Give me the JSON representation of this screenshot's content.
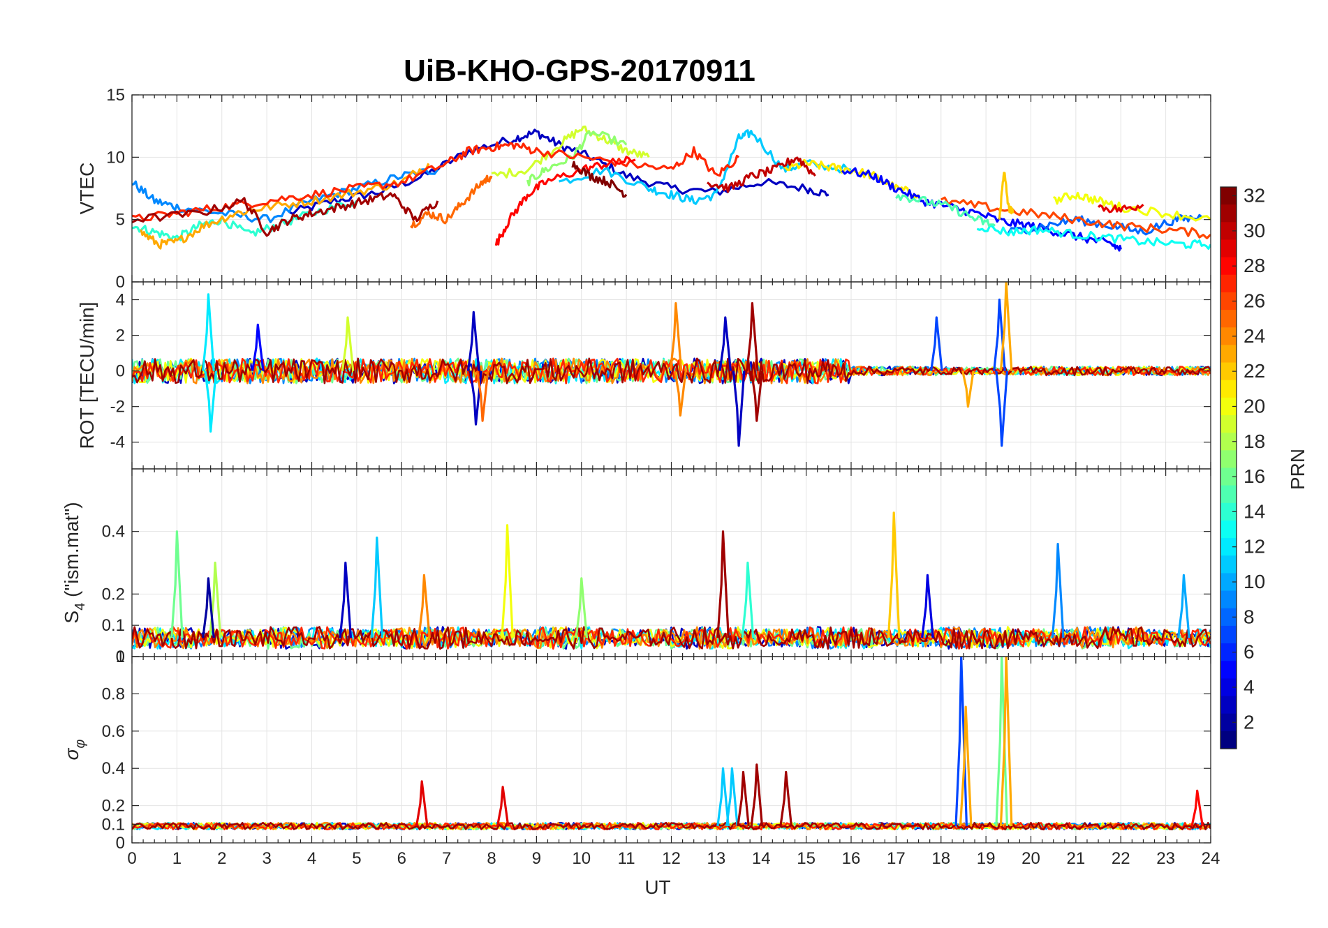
{
  "title": "UiB-KHO-GPS-20170911",
  "xlabel": "UT",
  "colorbar": {
    "label": "PRN",
    "min": 1,
    "max": 32,
    "ticks": [
      "2",
      "4",
      "6",
      "8",
      "10",
      "12",
      "14",
      "16",
      "18",
      "20",
      "22",
      "24",
      "26",
      "28",
      "30",
      "32"
    ],
    "colormap": "jet"
  },
  "chart_data": [
    {
      "type": "line",
      "panel": "vtec",
      "ylabel": "VTEC",
      "xlim": [
        0,
        24
      ],
      "ylim": [
        0,
        15
      ],
      "x_ticks": [
        "0",
        "1",
        "2",
        "3",
        "4",
        "5",
        "6",
        "7",
        "8",
        "9",
        "10",
        "11",
        "12",
        "13",
        "14",
        "15",
        "16",
        "17",
        "18",
        "19",
        "20",
        "21",
        "22",
        "23",
        "24"
      ],
      "y_ticks": [
        {
          "value": 0,
          "label": "0"
        },
        {
          "value": 5,
          "label": "5"
        },
        {
          "value": 10,
          "label": "10"
        },
        {
          "value": 15,
          "label": "15"
        }
      ],
      "grid": true,
      "series_note": "VTEC per satellite, colored by PRN",
      "series": [
        {
          "prn": 3,
          "x": [
            3.5,
            4.5,
            5.5,
            6.5,
            7.5,
            8.5,
            9.0,
            9.5,
            10.2,
            11.0,
            12.0,
            13.0,
            14.0,
            15.0,
            15.5
          ],
          "y": [
            5.5,
            6.5,
            7.2,
            8.5,
            10.5,
            11.5,
            12.0,
            11.0,
            10.0,
            8.5,
            7.5,
            7.2,
            8.0,
            7.5,
            7.0
          ]
        },
        {
          "prn": 9,
          "x": [
            0.0,
            0.5,
            1.0,
            2.0,
            3.0,
            4.0,
            5.0,
            6.0,
            6.8
          ],
          "y": [
            8.0,
            6.5,
            6.0,
            5.5,
            5.0,
            6.5,
            7.5,
            8.5,
            9.0
          ]
        },
        {
          "prn": 14,
          "x": [
            0.0,
            0.5,
            1.0,
            1.5,
            2.0,
            2.6,
            3.2,
            4.0,
            5.0
          ],
          "y": [
            4.5,
            4.0,
            3.5,
            4.5,
            5.0,
            3.8,
            4.5,
            5.5,
            6.5
          ]
        },
        {
          "prn": 11,
          "x": [
            9.5,
            10.5,
            11.5,
            12.0,
            12.5,
            13.0,
            13.5,
            13.8,
            14.5,
            15.0,
            16.0
          ],
          "y": [
            8.0,
            9.0,
            7.5,
            7.0,
            6.5,
            7.0,
            11.5,
            12.0,
            9.0,
            9.5,
            9.0
          ]
        },
        {
          "prn": 19,
          "x": [
            8.0,
            8.8,
            9.5,
            10.0,
            10.5,
            11.0,
            11.5
          ],
          "y": [
            8.5,
            9.0,
            11.0,
            12.3,
            11.5,
            10.5,
            10.0
          ]
        },
        {
          "prn": 17,
          "x": [
            8.8,
            9.2,
            9.8,
            10.2,
            11.0
          ],
          "y": [
            8.0,
            9.0,
            10.0,
            12.0,
            11.0
          ]
        },
        {
          "prn": 21,
          "x": [
            14.5,
            15.0,
            15.5,
            16.0,
            16.5,
            17.0,
            17.5
          ],
          "y": [
            9.0,
            9.5,
            9.2,
            9.0,
            8.5,
            7.5,
            7.0
          ]
        },
        {
          "prn": 23,
          "x": [
            0.2,
            0.6,
            1.0,
            1.6,
            2.3,
            3.0,
            4.0,
            5.0,
            6.0,
            6.6
          ],
          "y": [
            4.0,
            3.0,
            3.2,
            4.5,
            5.5,
            6.0,
            6.5,
            7.2,
            8.0,
            9.5
          ]
        },
        {
          "prn": 25,
          "x": [
            6.2,
            6.6,
            7.0,
            7.4,
            7.8,
            8.0
          ],
          "y": [
            4.5,
            5.5,
            5.0,
            6.5,
            8.0,
            8.5
          ]
        },
        {
          "prn": 27,
          "x": [
            0.0,
            1.0,
            2.0,
            3.0,
            4.0,
            5.0,
            6.0,
            7.0,
            7.5,
            8.0,
            8.5,
            9.0,
            10.0,
            11.0,
            12.0,
            12.5,
            13.0,
            13.5
          ],
          "y": [
            5.0,
            5.5,
            6.0,
            6.5,
            7.0,
            7.5,
            8.0,
            9.5,
            10.5,
            10.8,
            11.0,
            10.5,
            10.0,
            9.5,
            9.0,
            10.5,
            8.5,
            10.0
          ]
        },
        {
          "prn": 28,
          "x": [
            8.1,
            8.4,
            8.8,
            9.2,
            10.0,
            10.6,
            11.2
          ],
          "y": [
            3.0,
            5.0,
            7.0,
            8.0,
            9.0,
            9.5,
            9.8
          ]
        },
        {
          "prn": 31,
          "x": [
            0.0,
            1.5,
            2.5,
            3.0,
            3.5,
            4.0,
            4.6,
            5.2,
            5.8,
            6.3,
            6.8
          ],
          "y": [
            5.0,
            5.5,
            6.5,
            4.0,
            5.0,
            5.5,
            6.0,
            6.5,
            7.0,
            5.0,
            6.5
          ]
        },
        {
          "prn": 32,
          "x": [
            9.8,
            10.2,
            10.6,
            11.0
          ],
          "y": [
            9.5,
            8.5,
            8.0,
            7.0
          ]
        },
        {
          "prn": 30,
          "x": [
            12.8,
            13.3,
            13.8,
            14.3,
            14.8,
            15.2
          ],
          "y": [
            8.0,
            7.5,
            8.5,
            9.0,
            10.0,
            8.5
          ]
        },
        {
          "prn": 5,
          "x": [
            15.8,
            16.5,
            17.0,
            17.6,
            18.2,
            18.8,
            19.4,
            20.0,
            20.6,
            21.2,
            21.8,
            22.0
          ],
          "y": [
            9.0,
            8.5,
            7.5,
            6.5,
            6.0,
            5.5,
            4.8,
            4.5,
            4.0,
            3.5,
            3.0,
            2.6
          ]
        },
        {
          "prn": 8,
          "x": [
            19.5,
            20.3,
            21.0,
            21.8,
            22.5,
            23.2,
            23.8
          ],
          "y": [
            4.0,
            4.5,
            5.0,
            4.5,
            4.0,
            5.0,
            5.2
          ]
        },
        {
          "prn": 13,
          "x": [
            18.8,
            19.5,
            20.2,
            21.0,
            21.8,
            22.6,
            23.4,
            24.0
          ],
          "y": [
            4.5,
            4.0,
            4.2,
            3.8,
            3.5,
            3.2,
            3.0,
            3.0
          ]
        },
        {
          "prn": 20,
          "x": [
            20.5,
            21.0,
            21.5,
            22.0,
            23.0,
            24.0
          ],
          "y": [
            6.5,
            7.0,
            6.5,
            6.0,
            5.5,
            5.0
          ]
        },
        {
          "prn": 26,
          "x": [
            18.0,
            19.0,
            20.0,
            21.0,
            22.0,
            23.0,
            24.0
          ],
          "y": [
            6.5,
            6.0,
            5.5,
            5.0,
            4.5,
            4.2,
            3.8
          ]
        },
        {
          "prn": 29,
          "x": [
            21.5,
            22.0,
            22.5
          ],
          "y": [
            6.0,
            5.8,
            6.2
          ]
        },
        {
          "prn": 15,
          "x": [
            17.0,
            17.6,
            18.2,
            18.8,
            19.2
          ],
          "y": [
            7.0,
            6.5,
            6.0,
            5.0,
            4.5
          ]
        },
        {
          "prn": 22,
          "x": [
            19.3,
            19.4,
            19.5,
            19.6
          ],
          "y": [
            5.0,
            9.0,
            6.0,
            5.5
          ]
        }
      ]
    },
    {
      "type": "line",
      "panel": "rot",
      "ylabel": "ROT [TECU/min]",
      "xlim": [
        0,
        24
      ],
      "ylim": [
        -5.5,
        5
      ],
      "y_ticks": [
        {
          "value": -4,
          "label": "-4"
        },
        {
          "value": -2,
          "label": "-2"
        },
        {
          "value": 0,
          "label": "0"
        },
        {
          "value": 2,
          "label": "2"
        },
        {
          "value": 4,
          "label": "4"
        }
      ],
      "grid": true,
      "series_note": "rate of TEC per satellite, colored by PRN",
      "spikes": [
        {
          "prn": 12,
          "x": 1.7,
          "y": 4.3
        },
        {
          "prn": 12,
          "x": 1.75,
          "y": -3.4
        },
        {
          "prn": 5,
          "x": 2.8,
          "y": 2.6
        },
        {
          "prn": 19,
          "x": 4.8,
          "y": 3.0
        },
        {
          "prn": 3,
          "x": 7.6,
          "y": 3.3
        },
        {
          "prn": 3,
          "x": 7.65,
          "y": -3.0
        },
        {
          "prn": 25,
          "x": 7.8,
          "y": -2.8
        },
        {
          "prn": 24,
          "x": 12.1,
          "y": 3.8
        },
        {
          "prn": 24,
          "x": 12.2,
          "y": -2.5
        },
        {
          "prn": 3,
          "x": 13.5,
          "y": -4.2
        },
        {
          "prn": 3,
          "x": 13.2,
          "y": 3.0
        },
        {
          "prn": 31,
          "x": 13.8,
          "y": 3.8
        },
        {
          "prn": 31,
          "x": 13.9,
          "y": -2.8
        },
        {
          "prn": 7,
          "x": 17.9,
          "y": 3.0
        },
        {
          "prn": 7,
          "x": 19.3,
          "y": 4.0
        },
        {
          "prn": 7,
          "x": 19.35,
          "y": -4.2
        },
        {
          "prn": 23,
          "x": 19.45,
          "y": 5.0
        },
        {
          "prn": 23,
          "x": 18.6,
          "y": -2.0
        }
      ]
    },
    {
      "type": "line",
      "panel": "s4",
      "ylabel": "S4 (\"ism.mat\")",
      "ylabel_parts": {
        "symbol": "S",
        "sub": "4",
        "rest": " (\"ism.mat\")"
      },
      "xlim": [
        0,
        24
      ],
      "ylim": [
        0,
        0.6
      ],
      "y_ticks": [
        {
          "value": 0,
          "label": "0"
        },
        {
          "value": 0.1,
          "label": "0.1"
        },
        {
          "value": 0.2,
          "label": "0.2"
        },
        {
          "value": 0.4,
          "label": "0.4"
        }
      ],
      "grid": true,
      "series_note": "S4 scintillation index per satellite, colored by PRN",
      "spikes": [
        {
          "prn": 16,
          "x": 1.0,
          "y": 0.4
        },
        {
          "prn": 18,
          "x": 1.85,
          "y": 0.3
        },
        {
          "prn": 2,
          "x": 1.7,
          "y": 0.25
        },
        {
          "prn": 3,
          "x": 4.75,
          "y": 0.3
        },
        {
          "prn": 11,
          "x": 5.45,
          "y": 0.38
        },
        {
          "prn": 24,
          "x": 6.5,
          "y": 0.26
        },
        {
          "prn": 20,
          "x": 8.35,
          "y": 0.42
        },
        {
          "prn": 17,
          "x": 10.0,
          "y": 0.25
        },
        {
          "prn": 31,
          "x": 13.15,
          "y": 0.4
        },
        {
          "prn": 14,
          "x": 13.7,
          "y": 0.3
        },
        {
          "prn": 22,
          "x": 16.95,
          "y": 0.46
        },
        {
          "prn": 4,
          "x": 17.7,
          "y": 0.26
        },
        {
          "prn": 9,
          "x": 20.6,
          "y": 0.36
        },
        {
          "prn": 10,
          "x": 23.4,
          "y": 0.26
        }
      ]
    },
    {
      "type": "line",
      "panel": "sigma_phi",
      "ylabel": "σφ",
      "ylabel_parts": {
        "symbol": "σ",
        "sub": "φ"
      },
      "xlim": [
        0,
        24
      ],
      "ylim": [
        0,
        1
      ],
      "y_ticks": [
        {
          "value": 0,
          "label": "0"
        },
        {
          "value": 0.1,
          "label": "0.1"
        },
        {
          "value": 0.2,
          "label": "0.2"
        },
        {
          "value": 0.4,
          "label": "0.4"
        },
        {
          "value": 0.6,
          "label": "0.6"
        },
        {
          "value": 0.8,
          "label": "0.8"
        },
        {
          "value": 1,
          "label": "1"
        }
      ],
      "grid": true,
      "series_note": "phase scintillation index per satellite, colored by PRN",
      "spikes": [
        {
          "prn": 29,
          "x": 6.45,
          "y": 0.33
        },
        {
          "prn": 29,
          "x": 8.25,
          "y": 0.3
        },
        {
          "prn": 11,
          "x": 13.15,
          "y": 0.4
        },
        {
          "prn": 11,
          "x": 13.35,
          "y": 0.4
        },
        {
          "prn": 31,
          "x": 13.6,
          "y": 0.38
        },
        {
          "prn": 31,
          "x": 13.9,
          "y": 0.42
        },
        {
          "prn": 31,
          "x": 14.55,
          "y": 0.38
        },
        {
          "prn": 7,
          "x": 18.45,
          "y": 1.0
        },
        {
          "prn": 23,
          "x": 18.55,
          "y": 0.73
        },
        {
          "prn": 16,
          "x": 19.35,
          "y": 1.0
        },
        {
          "prn": 23,
          "x": 19.45,
          "y": 1.0
        },
        {
          "prn": 28,
          "x": 23.7,
          "y": 0.28
        }
      ]
    }
  ]
}
